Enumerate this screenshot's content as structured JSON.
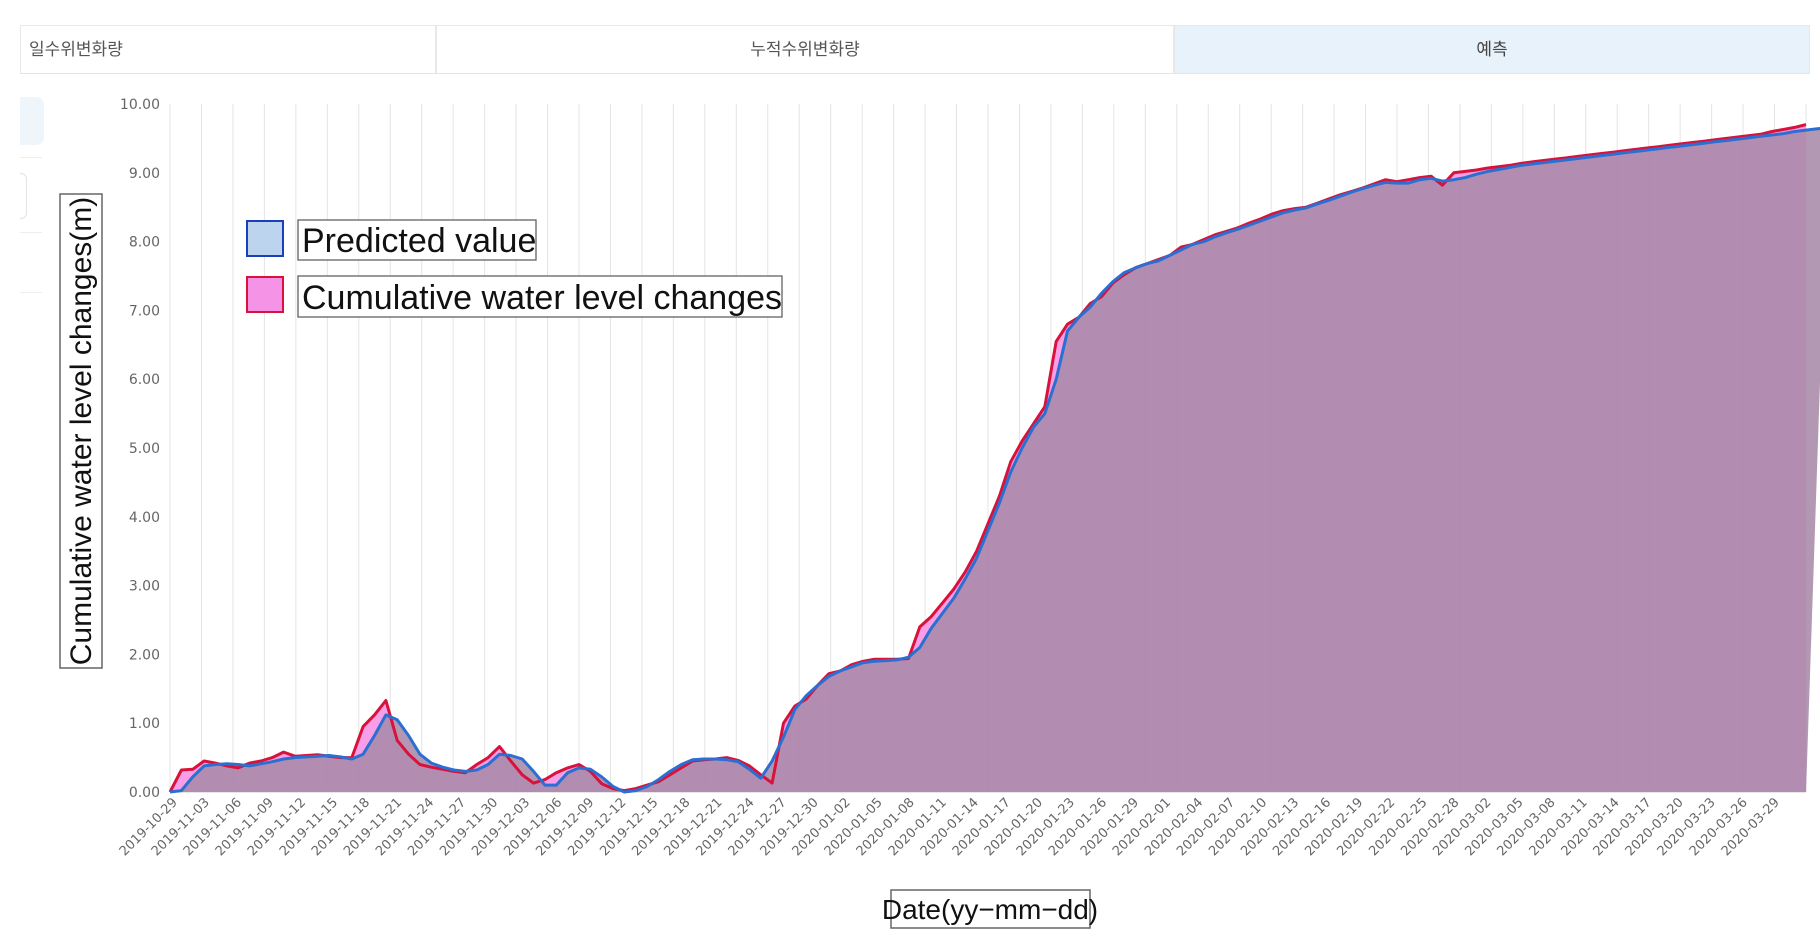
{
  "tabs": [
    {
      "label": "일수위변화량"
    },
    {
      "label": "누적수위변화량"
    },
    {
      "label": "예측"
    }
  ],
  "colors": {
    "predicted_line": "#2a6fd1",
    "actual_line": "#d8123a",
    "predicted_fill": "#bcd4ee",
    "actual_fill": "#f594e6",
    "overlap_fill": "#a98aa9"
  },
  "chart_data": {
    "type": "area",
    "title": "",
    "xlabel": "Date(yy−mm−dd)",
    "ylabel": "Cumulative water level changes(m)",
    "ylim": [
      0,
      10
    ],
    "yticks": [
      "0.00",
      "1.00",
      "2.00",
      "3.00",
      "4.00",
      "5.00",
      "6.00",
      "7.00",
      "8.00",
      "9.00",
      "10.00"
    ],
    "xticks": [
      "2019-10-29",
      "2019-11-03",
      "2019-11-06",
      "2019-11-09",
      "2019-11-12",
      "2019-11-15",
      "2019-11-18",
      "2019-11-21",
      "2019-11-24",
      "2019-11-27",
      "2019-11-30",
      "2019-12-03",
      "2019-12-06",
      "2019-12-09",
      "2019-12-12",
      "2019-12-15",
      "2019-12-18",
      "2019-12-21",
      "2019-12-24",
      "2019-12-27",
      "2019-12-30",
      "2020-01-02",
      "2020-01-05",
      "2020-01-08",
      "2020-01-11",
      "2020-01-14",
      "2020-01-17",
      "2020-01-20",
      "2020-01-23",
      "2020-01-26",
      "2020-01-29",
      "2020-02-01",
      "2020-02-04",
      "2020-02-07",
      "2020-02-10",
      "2020-02-13",
      "2020-02-16",
      "2020-02-19",
      "2020-02-22",
      "2020-02-25",
      "2020-02-28",
      "2020-03-02",
      "2020-03-05",
      "2020-03-08",
      "2020-03-11",
      "2020-03-14",
      "2020-03-17",
      "2020-03-20",
      "2020-03-23",
      "2020-03-26",
      "2020-03-29"
    ],
    "legend": [
      "Predicted value",
      "Cumulative water level changes"
    ],
    "legend_position": "top-left",
    "grid": "vertical",
    "series": [
      {
        "name": "Cumulative water level changes",
        "values": [
          0.0,
          0.32,
          0.33,
          0.45,
          0.42,
          0.38,
          0.35,
          0.42,
          0.45,
          0.5,
          0.58,
          0.52,
          0.53,
          0.54,
          0.52,
          0.5,
          0.5,
          0.95,
          1.12,
          1.33,
          0.75,
          0.55,
          0.4,
          0.36,
          0.33,
          0.3,
          0.28,
          0.4,
          0.5,
          0.66,
          0.45,
          0.25,
          0.13,
          0.18,
          0.28,
          0.35,
          0.4,
          0.3,
          0.12,
          0.05,
          0.02,
          0.05,
          0.1,
          0.15,
          0.25,
          0.35,
          0.45,
          0.47,
          0.48,
          0.5,
          0.46,
          0.38,
          0.25,
          0.13,
          1.0,
          1.25,
          1.35,
          1.55,
          1.72,
          1.76,
          1.85,
          1.9,
          1.93,
          1.93,
          1.93,
          1.94,
          2.4,
          2.55,
          2.75,
          2.95,
          3.2,
          3.5,
          3.9,
          4.3,
          4.8,
          5.1,
          5.35,
          5.6,
          6.55,
          6.8,
          6.9,
          7.1,
          7.2,
          7.4,
          7.52,
          7.62,
          7.68,
          7.74,
          7.8,
          7.92,
          7.96,
          8.03,
          8.1,
          8.15,
          8.2,
          8.27,
          8.33,
          8.4,
          8.45,
          8.48,
          8.5,
          8.56,
          8.62,
          8.68,
          8.73,
          8.78,
          8.84,
          8.9,
          8.87,
          8.9,
          8.93,
          8.95,
          8.82,
          9.0,
          9.02,
          9.04,
          9.07,
          9.09,
          9.11,
          9.14,
          9.16,
          9.18,
          9.2,
          9.22,
          9.24,
          9.26,
          9.28,
          9.3,
          9.32,
          9.34,
          9.36,
          9.38,
          9.4,
          9.42,
          9.44,
          9.46,
          9.48,
          9.5,
          9.52,
          9.54,
          9.56,
          9.6,
          9.63,
          9.66,
          9.7
        ]
      },
      {
        "name": "Predicted value",
        "values": [
          0.0,
          0.02,
          0.22,
          0.38,
          0.4,
          0.41,
          0.4,
          0.38,
          0.41,
          0.44,
          0.48,
          0.5,
          0.51,
          0.52,
          0.53,
          0.51,
          0.48,
          0.55,
          0.82,
          1.12,
          1.05,
          0.82,
          0.55,
          0.42,
          0.36,
          0.32,
          0.3,
          0.32,
          0.4,
          0.55,
          0.53,
          0.48,
          0.3,
          0.1,
          0.1,
          0.28,
          0.35,
          0.33,
          0.22,
          0.08,
          0.0,
          0.02,
          0.08,
          0.18,
          0.3,
          0.4,
          0.47,
          0.48,
          0.48,
          0.47,
          0.44,
          0.33,
          0.2,
          0.45,
          0.8,
          1.2,
          1.4,
          1.55,
          1.68,
          1.76,
          1.82,
          1.88,
          1.9,
          1.91,
          1.92,
          1.96,
          2.1,
          2.38,
          2.6,
          2.82,
          3.1,
          3.4,
          3.8,
          4.2,
          4.65,
          5.0,
          5.3,
          5.5,
          6.0,
          6.7,
          6.9,
          7.05,
          7.25,
          7.42,
          7.55,
          7.62,
          7.68,
          7.72,
          7.8,
          7.88,
          7.96,
          8.0,
          8.07,
          8.13,
          8.18,
          8.24,
          8.3,
          8.36,
          8.42,
          8.46,
          8.49,
          8.55,
          8.6,
          8.66,
          8.72,
          8.77,
          8.82,
          8.86,
          8.85,
          8.85,
          8.9,
          8.92,
          8.88,
          8.9,
          8.93,
          8.98,
          9.02,
          9.05,
          9.08,
          9.11,
          9.13,
          9.15,
          9.17,
          9.19,
          9.21,
          9.23,
          9.25,
          9.27,
          9.29,
          9.31,
          9.33,
          9.35,
          9.37,
          9.39,
          9.41,
          9.43,
          9.45,
          9.47,
          9.49,
          9.51,
          9.53,
          9.55,
          9.57,
          9.6,
          9.62,
          9.64,
          9.66
        ]
      }
    ]
  }
}
